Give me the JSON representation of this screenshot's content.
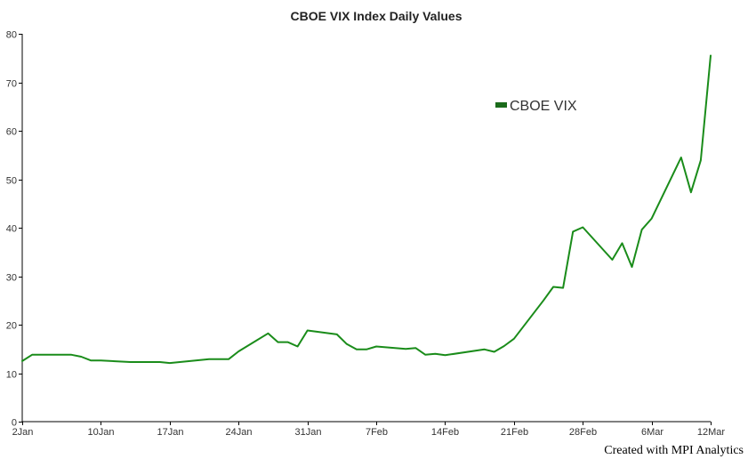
{
  "chart_data": {
    "type": "line",
    "title": "CBOE VIX Index Daily Values",
    "xlabel": "",
    "ylabel": "",
    "ylim": [
      0,
      80
    ],
    "yticks": [
      0,
      10,
      20,
      30,
      40,
      50,
      60,
      70,
      80
    ],
    "xlim": [
      "2020-01-02",
      "2020-03-12"
    ],
    "xtick_labels": [
      {
        "date": "2020-01-02",
        "label": "2Jan"
      },
      {
        "date": "2020-01-10",
        "label": "10Jan"
      },
      {
        "date": "2020-01-17",
        "label": "17Jan"
      },
      {
        "date": "2020-01-24",
        "label": "24Jan"
      },
      {
        "date": "2020-01-31",
        "label": "31Jan"
      },
      {
        "date": "2020-02-07",
        "label": "7Feb"
      },
      {
        "date": "2020-02-14",
        "label": "14Feb"
      },
      {
        "date": "2020-02-21",
        "label": "21Feb"
      },
      {
        "date": "2020-02-28",
        "label": "28Feb"
      },
      {
        "date": "2020-03-06",
        "label": "6Mar"
      },
      {
        "date": "2020-03-12",
        "label": "12Mar"
      }
    ],
    "grid": false,
    "legend_position": "top-right",
    "series": [
      {
        "name": "CBOE VIX",
        "color": "#1a8c1a",
        "x": [
          "2020-01-02",
          "2020-01-03",
          "2020-01-06",
          "2020-01-07",
          "2020-01-08",
          "2020-01-09",
          "2020-01-10",
          "2020-01-13",
          "2020-01-14",
          "2020-01-15",
          "2020-01-16",
          "2020-01-17",
          "2020-01-21",
          "2020-01-22",
          "2020-01-23",
          "2020-01-24",
          "2020-01-27",
          "2020-01-28",
          "2020-01-29",
          "2020-01-30",
          "2020-01-31",
          "2020-02-03",
          "2020-02-04",
          "2020-02-05",
          "2020-02-06",
          "2020-02-07",
          "2020-02-10",
          "2020-02-11",
          "2020-02-12",
          "2020-02-13",
          "2020-02-14",
          "2020-02-18",
          "2020-02-19",
          "2020-02-20",
          "2020-02-21",
          "2020-02-24",
          "2020-02-25",
          "2020-02-26",
          "2020-02-27",
          "2020-02-28",
          "2020-03-02",
          "2020-03-03",
          "2020-03-04",
          "2020-03-05",
          "2020-03-06",
          "2020-03-09",
          "2020-03-10",
          "2020-03-11",
          "2020-03-12"
        ],
        "values": [
          12.5,
          13.8,
          13.8,
          13.8,
          13.4,
          12.6,
          12.6,
          12.3,
          12.3,
          12.3,
          12.3,
          12.1,
          12.9,
          12.9,
          12.9,
          14.5,
          18.2,
          16.4,
          16.4,
          15.5,
          18.8,
          18.0,
          16.0,
          14.9,
          14.9,
          15.5,
          15.0,
          15.2,
          13.8,
          14.0,
          13.7,
          14.9,
          14.4,
          15.6,
          17.1,
          25.0,
          27.8,
          27.6,
          39.2,
          40.1,
          33.4,
          36.8,
          31.9,
          39.6,
          41.9,
          54.5,
          47.3,
          53.9,
          75.5
        ]
      }
    ]
  },
  "footer": {
    "credit": "Created with MPI Analytics"
  }
}
